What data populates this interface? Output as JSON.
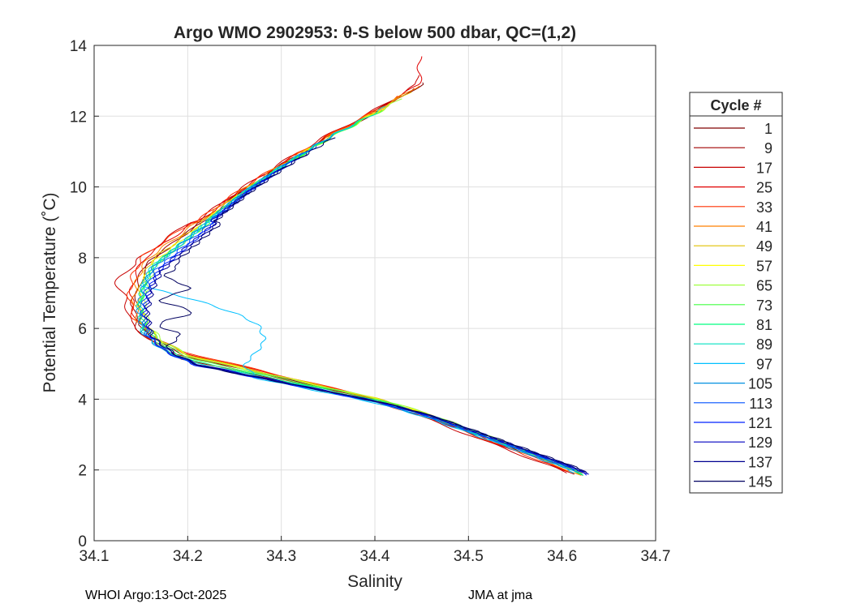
{
  "chart_data": {
    "type": "line",
    "title": "Argo WMO 2902953: θ-S below 500 dbar,  QC=(1,2)",
    "xlabel": "Salinity",
    "ylabel": "Potential Temperature (˚C)",
    "xlim": [
      34.1,
      34.7
    ],
    "ylim": [
      0,
      14
    ],
    "xticks": [
      "34.1",
      "34.2",
      "34.3",
      "34.4",
      "34.5",
      "34.6",
      "34.7"
    ],
    "yticks": [
      "0",
      "2",
      "4",
      "6",
      "8",
      "10",
      "12",
      "14"
    ],
    "grid": true,
    "legend": {
      "title": "Cycle #",
      "placement": "right",
      "entries": [
        {
          "label": "1",
          "color": "#800000"
        },
        {
          "label": "9",
          "color": "#a00000"
        },
        {
          "label": "17",
          "color": "#c80000"
        },
        {
          "label": "25",
          "color": "#e00000"
        },
        {
          "label": "33",
          "color": "#ff3000"
        },
        {
          "label": "41",
          "color": "#ff8000"
        },
        {
          "label": "49",
          "color": "#e0c000"
        },
        {
          "label": "57",
          "color": "#ffff00"
        },
        {
          "label": "65",
          "color": "#a0ff40"
        },
        {
          "label": "73",
          "color": "#40ff40"
        },
        {
          "label": "81",
          "color": "#00ff80"
        },
        {
          "label": "89",
          "color": "#00e0c0"
        },
        {
          "label": "97",
          "color": "#00c0ff"
        },
        {
          "label": "105",
          "color": "#0090e0"
        },
        {
          "label": "113",
          "color": "#0050ff"
        },
        {
          "label": "121",
          "color": "#0020ff"
        },
        {
          "label": "129",
          "color": "#0000c0"
        },
        {
          "label": "137",
          "color": "#000090"
        },
        {
          "label": "145",
          "color": "#000060"
        }
      ]
    },
    "representative_profile": {
      "salinity": [
        34.625,
        34.6,
        34.55,
        34.5,
        34.45,
        34.4,
        34.35,
        34.3,
        34.25,
        34.2,
        34.17,
        34.15,
        34.145,
        34.15,
        34.16,
        34.18,
        34.2,
        34.23,
        34.26,
        34.3,
        34.35,
        34.4,
        34.45
      ],
      "theta": [
        1.8,
        2.1,
        2.6,
        3.1,
        3.6,
        4.0,
        4.3,
        4.6,
        4.9,
        5.2,
        5.6,
        6.1,
        6.8,
        7.4,
        7.9,
        8.3,
        8.7,
        9.3,
        9.9,
        10.6,
        11.4,
        12.1,
        12.9
      ]
    },
    "series": [
      {
        "name": "1",
        "color": "#800000",
        "dS": 0.0,
        "dT": 0.0,
        "top": 13.0,
        "anomaly": "none"
      },
      {
        "name": "9",
        "color": "#a00000",
        "dS": -0.004,
        "dT": 0.1,
        "top": 12.8,
        "anomaly": "none"
      },
      {
        "name": "17",
        "color": "#c80000",
        "dS": -0.012,
        "dT": -0.1,
        "top": 13.2,
        "anomaly": "kink"
      },
      {
        "name": "25",
        "color": "#e00000",
        "dS": -0.006,
        "dT": -0.15,
        "top": 13.7,
        "anomaly": "none"
      },
      {
        "name": "33",
        "color": "#ff3000",
        "dS": -0.008,
        "dT": -0.2,
        "top": 12.6,
        "anomaly": "none"
      },
      {
        "name": "41",
        "color": "#ff8000",
        "dS": -0.003,
        "dT": -0.1,
        "top": 12.9,
        "anomaly": "none"
      },
      {
        "name": "49",
        "color": "#e0c000",
        "dS": 0.002,
        "dT": -0.05,
        "top": 12.7,
        "anomaly": "none"
      },
      {
        "name": "57",
        "color": "#ffff00",
        "dS": 0.004,
        "dT": 0.0,
        "top": 12.4,
        "anomaly": "none"
      },
      {
        "name": "65",
        "color": "#a0ff40",
        "dS": 0.008,
        "dT": 0.05,
        "top": 12.5,
        "anomaly": "none"
      },
      {
        "name": "73",
        "color": "#40ff40",
        "dS": 0.006,
        "dT": 0.1,
        "top": 12.2,
        "anomaly": "none"
      },
      {
        "name": "81",
        "color": "#00ff80",
        "dS": 0.004,
        "dT": 0.15,
        "top": 12.0,
        "anomaly": "none"
      },
      {
        "name": "89",
        "color": "#00e0c0",
        "dS": 0.002,
        "dT": 0.2,
        "top": 12.3,
        "anomaly": "none"
      },
      {
        "name": "97",
        "color": "#00c0ff",
        "dS": 0.0,
        "dT": 0.3,
        "top": 11.8,
        "anomaly": "intrusion"
      },
      {
        "name": "105",
        "color": "#0090e0",
        "dS": 0.002,
        "dT": 0.25,
        "top": 11.5,
        "anomaly": "none"
      },
      {
        "name": "113",
        "color": "#0050ff",
        "dS": 0.006,
        "dT": 0.3,
        "top": 11.2,
        "anomaly": "none"
      },
      {
        "name": "121",
        "color": "#0020ff",
        "dS": 0.008,
        "dT": 0.35,
        "top": 10.9,
        "anomaly": "none"
      },
      {
        "name": "129",
        "color": "#0000c0",
        "dS": 0.01,
        "dT": 0.3,
        "top": 10.6,
        "anomaly": "none"
      },
      {
        "name": "137",
        "color": "#000090",
        "dS": 0.012,
        "dT": 0.35,
        "top": 11.0,
        "anomaly": "none"
      },
      {
        "name": "145",
        "color": "#000060",
        "dS": 0.014,
        "dT": 0.4,
        "top": 11.4,
        "anomaly": "wiggle"
      }
    ]
  },
  "footer": {
    "left": "WHOI Argo:13-Oct-2025",
    "right": "JMA at jma"
  }
}
